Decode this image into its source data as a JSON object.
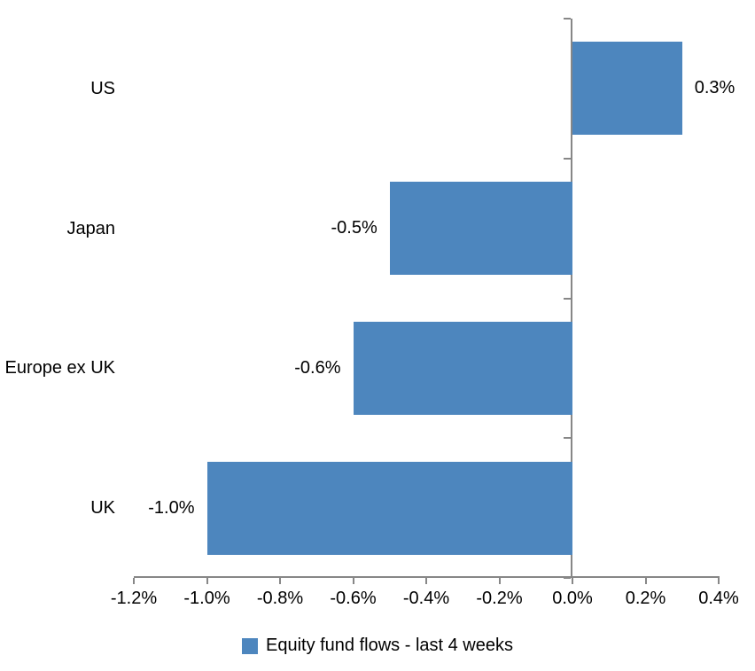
{
  "chart_data": {
    "type": "bar",
    "orientation": "horizontal",
    "title": "",
    "xlabel": "",
    "ylabel": "",
    "categories": [
      "US",
      "Japan",
      "Europe ex UK",
      "UK"
    ],
    "series": [
      {
        "name": "Equity fund flows - last 4 weeks",
        "values": [
          0.3,
          -0.5,
          -0.6,
          -1.0
        ],
        "data_labels": [
          "0.3%",
          "-0.5%",
          "-0.6%",
          "-1.0%"
        ]
      }
    ],
    "xlim": [
      -1.2,
      0.4
    ],
    "x_tick_values": [
      -1.2,
      -1.0,
      -0.8,
      -0.6,
      -0.4,
      -0.2,
      0.0,
      0.2,
      0.4
    ],
    "x_tick_labels": [
      "-1.2%",
      "-1.0%",
      "-0.8%",
      "-0.6%",
      "-0.4%",
      "-0.2%",
      "0.0%",
      "0.2%",
      "0.4%"
    ],
    "grid": false,
    "legend_position": "bottom",
    "bar_color": "#4D86BE",
    "axis_color": "#878787",
    "text_color": "#000000",
    "background_color": "#FFFFFF"
  }
}
